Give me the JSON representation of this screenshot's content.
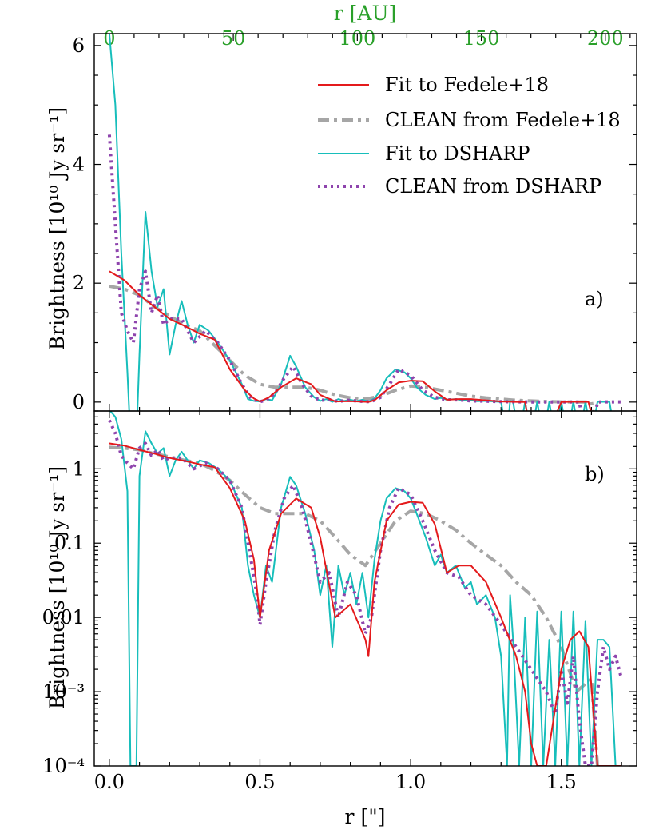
{
  "chart_data": {
    "type": "line",
    "shared_x": {
      "xlabel": "r [\"]",
      "xlim": [
        -0.05,
        1.75
      ],
      "xticks": [
        "0.0",
        "0.5",
        "1.0",
        "1.5"
      ],
      "top_axis": {
        "label": "r [AU]",
        "ticks": [
          "0",
          "50",
          "100",
          "150",
          "200"
        ],
        "color": "#2aa02a",
        "au_per_arcsec": 121.5
      }
    },
    "legend": [
      {
        "name": "Fit to Fedele+18",
        "color": "#e41a1c",
        "style": "solid"
      },
      {
        "name": "CLEAN from Fedele+18",
        "color": "#a6a6a6",
        "style": "dashdot"
      },
      {
        "name": "Fit to DSHARP",
        "color": "#17bebb",
        "style": "solid"
      },
      {
        "name": "CLEAN from DSHARP",
        "color": "#8e44ad",
        "style": "dotted"
      }
    ],
    "panels": [
      {
        "tag": "a)",
        "scale": "linear",
        "ylabel": "Brightness [10¹⁰ Jy sr⁻¹]",
        "ylim": [
          -0.15,
          6.2
        ],
        "yticks": [
          "0",
          "2",
          "4",
          "6"
        ]
      },
      {
        "tag": "b)",
        "scale": "log",
        "ylabel": "Brightness [10¹⁰ Jy sr⁻¹]",
        "ylim": [
          0.0001,
          6
        ],
        "yticks": [
          "10⁻⁴",
          "10⁻³",
          "0.01",
          "0.1",
          "1"
        ]
      }
    ],
    "series": [
      {
        "name": "Fit to Fedele+18",
        "x": [
          0,
          0.05,
          0.1,
          0.15,
          0.2,
          0.25,
          0.3,
          0.35,
          0.4,
          0.45,
          0.48,
          0.5,
          0.53,
          0.57,
          0.62,
          0.67,
          0.7,
          0.75,
          0.8,
          0.85,
          0.86,
          0.88,
          0.92,
          0.96,
          1.0,
          1.04,
          1.08,
          1.12,
          1.16,
          1.2,
          1.25,
          1.3,
          1.35,
          1.38,
          1.4,
          1.42,
          1.45,
          1.5,
          1.53,
          1.56,
          1.59,
          1.62,
          1.65,
          1.7
        ],
        "y": [
          2.2,
          2.05,
          1.8,
          1.6,
          1.4,
          1.28,
          1.15,
          1.05,
          0.55,
          0.2,
          0.06,
          0.01,
          0.08,
          0.25,
          0.4,
          0.3,
          0.12,
          0.01,
          0.015,
          0.005,
          0.003,
          0.03,
          0.2,
          0.33,
          0.36,
          0.35,
          0.18,
          0.04,
          0.05,
          0.05,
          0.03,
          0.01,
          0.003,
          0.001,
          0.0002,
          0.0001,
          0.0001,
          0.002,
          0.005,
          0.0065,
          0.004,
          0.0001,
          0.0001,
          0.0001
        ]
      },
      {
        "name": "CLEAN from Fedele+18",
        "x": [
          0,
          0.05,
          0.1,
          0.15,
          0.2,
          0.25,
          0.3,
          0.35,
          0.4,
          0.45,
          0.5,
          0.55,
          0.6,
          0.65,
          0.7,
          0.75,
          0.8,
          0.85,
          0.9,
          0.95,
          1.0,
          1.05,
          1.1,
          1.15,
          1.2,
          1.25,
          1.3,
          1.35,
          1.4,
          1.45,
          1.5,
          1.55,
          1.6,
          1.62
        ],
        "y": [
          1.95,
          1.9,
          1.8,
          1.6,
          1.45,
          1.3,
          1.2,
          0.95,
          0.7,
          0.45,
          0.3,
          0.25,
          0.25,
          0.25,
          0.2,
          0.12,
          0.07,
          0.05,
          0.1,
          0.2,
          0.27,
          0.25,
          0.2,
          0.15,
          0.1,
          0.07,
          0.05,
          0.03,
          0.02,
          0.01,
          0.004,
          0.001,
          0.0015,
          0.0001
        ]
      },
      {
        "name": "Fit to DSHARP",
        "x": [
          0,
          0.02,
          0.04,
          0.06,
          0.07,
          0.08,
          0.09,
          0.1,
          0.12,
          0.14,
          0.16,
          0.18,
          0.2,
          0.22,
          0.24,
          0.26,
          0.28,
          0.3,
          0.33,
          0.36,
          0.4,
          0.44,
          0.46,
          0.48,
          0.5,
          0.52,
          0.54,
          0.57,
          0.6,
          0.62,
          0.65,
          0.68,
          0.7,
          0.72,
          0.74,
          0.76,
          0.78,
          0.8,
          0.82,
          0.84,
          0.86,
          0.88,
          0.9,
          0.92,
          0.95,
          0.98,
          1.0,
          1.02,
          1.05,
          1.08,
          1.1,
          1.12,
          1.15,
          1.18,
          1.2,
          1.22,
          1.25,
          1.28,
          1.3,
          1.32,
          1.33,
          1.34,
          1.36,
          1.38,
          1.4,
          1.42,
          1.44,
          1.46,
          1.48,
          1.5,
          1.52,
          1.54,
          1.56,
          1.58,
          1.6,
          1.62,
          1.64,
          1.66,
          1.68,
          1.7
        ],
        "y": [
          6.2,
          5,
          2.5,
          0.5,
          0.0001,
          0.0001,
          0.0001,
          0.8,
          3.2,
          2.2,
          1.6,
          1.9,
          0.8,
          1.3,
          1.7,
          1.3,
          1.0,
          1.3,
          1.2,
          1.0,
          0.7,
          0.3,
          0.05,
          0.02,
          0.01,
          0.05,
          0.03,
          0.3,
          0.78,
          0.6,
          0.25,
          0.08,
          0.02,
          0.05,
          0.004,
          0.05,
          0.02,
          0.04,
          0.015,
          0.04,
          0.01,
          0.06,
          0.2,
          0.4,
          0.55,
          0.5,
          0.4,
          0.25,
          0.12,
          0.05,
          0.07,
          0.04,
          0.05,
          0.025,
          0.03,
          0.015,
          0.02,
          0.01,
          0.003,
          0.0001,
          0.02,
          0.005,
          0.0001,
          0.01,
          0.0001,
          0.012,
          0.0001,
          0.005,
          0.0001,
          0.012,
          0.0001,
          0.012,
          0.0001,
          0.009,
          0.0001,
          0.005,
          0.005,
          0.004,
          0.0001,
          0.0001
        ]
      },
      {
        "name": "CLEAN from DSHARP",
        "x": [
          0,
          0.02,
          0.04,
          0.06,
          0.08,
          0.1,
          0.12,
          0.14,
          0.16,
          0.18,
          0.2,
          0.24,
          0.28,
          0.32,
          0.36,
          0.4,
          0.44,
          0.47,
          0.49,
          0.5,
          0.52,
          0.55,
          0.58,
          0.61,
          0.64,
          0.67,
          0.7,
          0.73,
          0.76,
          0.79,
          0.82,
          0.85,
          0.87,
          0.9,
          0.93,
          0.96,
          1.0,
          1.04,
          1.08,
          1.12,
          1.16,
          1.2,
          1.25,
          1.3,
          1.35,
          1.4,
          1.45,
          1.48,
          1.5,
          1.52,
          1.54,
          1.56,
          1.58,
          1.6,
          1.62,
          1.64,
          1.66,
          1.68,
          1.7
        ],
        "y": [
          4.5,
          3,
          1.5,
          1.2,
          1.0,
          1.9,
          2.2,
          1.5,
          1.8,
          1.3,
          1.4,
          1.4,
          1.0,
          1.2,
          1.0,
          0.7,
          0.3,
          0.06,
          0.02,
          0.008,
          0.03,
          0.15,
          0.4,
          0.6,
          0.3,
          0.1,
          0.03,
          0.04,
          0.01,
          0.03,
          0.02,
          0.006,
          0.01,
          0.08,
          0.3,
          0.55,
          0.45,
          0.2,
          0.08,
          0.04,
          0.035,
          0.02,
          0.015,
          0.008,
          0.004,
          0.002,
          0.001,
          0.0005,
          0.002,
          0.0007,
          0.003,
          0.0004,
          0.0001,
          0.0001,
          0.001,
          0.004,
          0.002,
          0.003,
          0.0015
        ]
      }
    ]
  }
}
